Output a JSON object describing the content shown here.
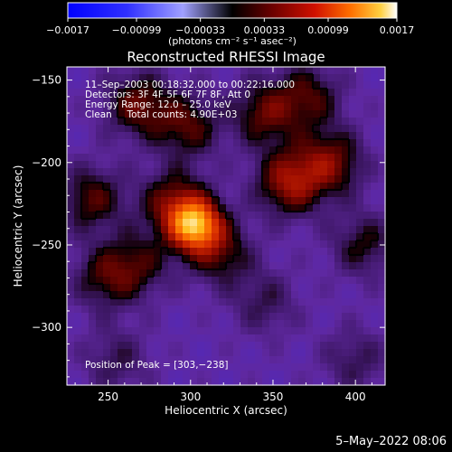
{
  "chart_data": {
    "type": "heatmap",
    "title": "Reconstructed RHESSI Image",
    "xlabel": "Heliocentric X (arcsec)",
    "ylabel": "Heliocentric Y (arcsec)",
    "xlim": [
      225,
      418
    ],
    "ylim": [
      -335,
      -142
    ],
    "x_ticks": [
      250,
      300,
      350,
      400
    ],
    "x_tick_labels": [
      "250",
      "300",
      "350",
      "400"
    ],
    "y_ticks": [
      -150,
      -200,
      -250,
      -300
    ],
    "y_tick_labels": [
      "−150",
      "−200",
      "−250",
      "−300"
    ],
    "colorbar": {
      "min": -0.0017,
      "max": 0.0017,
      "ticks": [
        -0.0017,
        -0.00099,
        -0.00033,
        0.00033,
        0.00099,
        0.0017
      ],
      "tick_labels": [
        "−0.0017",
        "−0.00099",
        "−0.00033",
        "0.00033",
        "0.00099",
        "0.0017"
      ],
      "units_label": "(photons cm⁻² s⁻¹ asec⁻²)"
    },
    "annotations": [
      "11–Sep–2003 00:18:32.000 to 00:22:16.000",
      "Detectors: 3F 4F 5F 6F 7F 8F, Att 0",
      "Energy Range: 12.0 – 25.0 keV",
      "Clean     Total counts: 4.90E+03"
    ],
    "peak_label": "Position of Peak = [303,−238]",
    "peak": [
      303,
      -238
    ],
    "sources": [
      {
        "x": 303,
        "y": -238,
        "amp": 1.0
      },
      {
        "x": 290,
        "y": -225,
        "amp": 0.45
      },
      {
        "x": 318,
        "y": -255,
        "amp": 0.35
      },
      {
        "x": 360,
        "y": -212,
        "amp": 0.55
      },
      {
        "x": 385,
        "y": -200,
        "amp": 0.45
      },
      {
        "x": 268,
        "y": -165,
        "amp": 0.42
      },
      {
        "x": 298,
        "y": -178,
        "amp": 0.38
      },
      {
        "x": 345,
        "y": -170,
        "amp": 0.4
      },
      {
        "x": 372,
        "y": -160,
        "amp": 0.35
      },
      {
        "x": 240,
        "y": -222,
        "amp": 0.38
      },
      {
        "x": 248,
        "y": -270,
        "amp": 0.32
      },
      {
        "x": 268,
        "y": -262,
        "amp": 0.3
      },
      {
        "x": 345,
        "y": -285,
        "amp": 0.22
      },
      {
        "x": 255,
        "y": -320,
        "amp": 0.22
      },
      {
        "x": 405,
        "y": -250,
        "amp": 0.3
      },
      {
        "x": 400,
        "y": -320,
        "amp": 0.22
      }
    ]
  },
  "timestamp": "5–May–2022 08:06"
}
